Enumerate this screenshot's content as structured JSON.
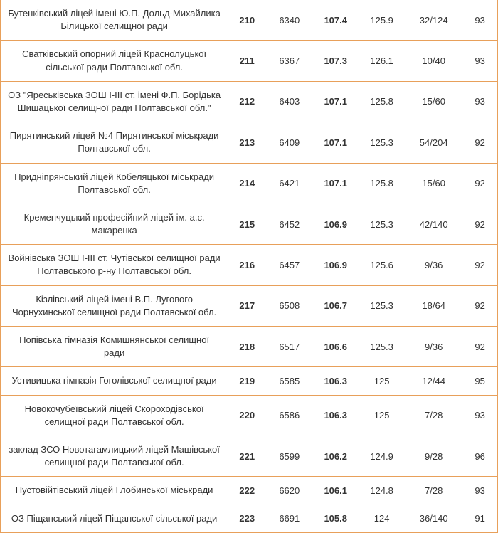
{
  "table": {
    "border_color": "#e8a05a",
    "background_color": "#ffffff",
    "text_color": "#333333",
    "font_size": 13,
    "columns": [
      {
        "key": "name",
        "class": "name-cell"
      },
      {
        "key": "c1",
        "class": "col-bold1"
      },
      {
        "key": "c2",
        "class": "col-plain"
      },
      {
        "key": "c3",
        "class": "col-bold2"
      },
      {
        "key": "c4",
        "class": "col-plain"
      },
      {
        "key": "c5",
        "class": "col-ratio"
      },
      {
        "key": "c6",
        "class": "col-last"
      }
    ],
    "rows": [
      {
        "name": "Бутенківський ліцей імені Ю.П. Дольд-Михайлика Білицької селищної ради",
        "c1": "210",
        "c2": "6340",
        "c3": "107.4",
        "c4": "125.9",
        "c5": "32/124",
        "c6": "93"
      },
      {
        "name": "Сватківський опорний ліцей Краснолуцької сільської ради Полтавської обл.",
        "c1": "211",
        "c2": "6367",
        "c3": "107.3",
        "c4": "126.1",
        "c5": "10/40",
        "c6": "93"
      },
      {
        "name": "ОЗ \"Яреськівська ЗОШ І-ІІІ ст. імені Ф.П. Борідька Шишацької селищної ради Полтавської обл.\"",
        "c1": "212",
        "c2": "6403",
        "c3": "107.1",
        "c4": "125.8",
        "c5": "15/60",
        "c6": "93"
      },
      {
        "name": "Пирятинський ліцей №4 Пирятинської міськради Полтавської обл.",
        "c1": "213",
        "c2": "6409",
        "c3": "107.1",
        "c4": "125.3",
        "c5": "54/204",
        "c6": "92"
      },
      {
        "name": "Придніпрянський ліцей Кобеляцької міськради Полтавської обл.",
        "c1": "214",
        "c2": "6421",
        "c3": "107.1",
        "c4": "125.8",
        "c5": "15/60",
        "c6": "92"
      },
      {
        "name": "Кременчуцький професійний ліцей ім. а.с. макаренка",
        "c1": "215",
        "c2": "6452",
        "c3": "106.9",
        "c4": "125.3",
        "c5": "42/140",
        "c6": "92"
      },
      {
        "name": "Войнівська ЗОШ І-ІІІ ст. Чутівської селищної ради Полтавського р-ну Полтавської обл.",
        "c1": "216",
        "c2": "6457",
        "c3": "106.9",
        "c4": "125.6",
        "c5": "9/36",
        "c6": "92"
      },
      {
        "name": "Кізлівський ліцей імені В.П. Лугового Чорнухинської селищної ради Полтавської обл.",
        "c1": "217",
        "c2": "6508",
        "c3": "106.7",
        "c4": "125.3",
        "c5": "18/64",
        "c6": "92"
      },
      {
        "name": "Попівська гімназія Комишнянської селищної ради",
        "c1": "218",
        "c2": "6517",
        "c3": "106.6",
        "c4": "125.3",
        "c5": "9/36",
        "c6": "92"
      },
      {
        "name": "Устивицька гімназія Гоголівської селищної ради",
        "c1": "219",
        "c2": "6585",
        "c3": "106.3",
        "c4": "125",
        "c5": "12/44",
        "c6": "95"
      },
      {
        "name": "Новокочубеївський ліцей Скороходівської селищної ради Полтавської обл.",
        "c1": "220",
        "c2": "6586",
        "c3": "106.3",
        "c4": "125",
        "c5": "7/28",
        "c6": "93"
      },
      {
        "name": "заклад ЗСО Новотагамлицький ліцей Машівської селищної ради Полтавської обл.",
        "c1": "221",
        "c2": "6599",
        "c3": "106.2",
        "c4": "124.9",
        "c5": "9/28",
        "c6": "96"
      },
      {
        "name": "Пустовійтівський ліцей Глобинської міськради",
        "c1": "222",
        "c2": "6620",
        "c3": "106.1",
        "c4": "124.8",
        "c5": "7/28",
        "c6": "93"
      },
      {
        "name": "ОЗ Піщанський ліцей Піщанської сільської ради",
        "c1": "223",
        "c2": "6691",
        "c3": "105.8",
        "c4": "124",
        "c5": "36/140",
        "c6": "91"
      }
    ]
  }
}
